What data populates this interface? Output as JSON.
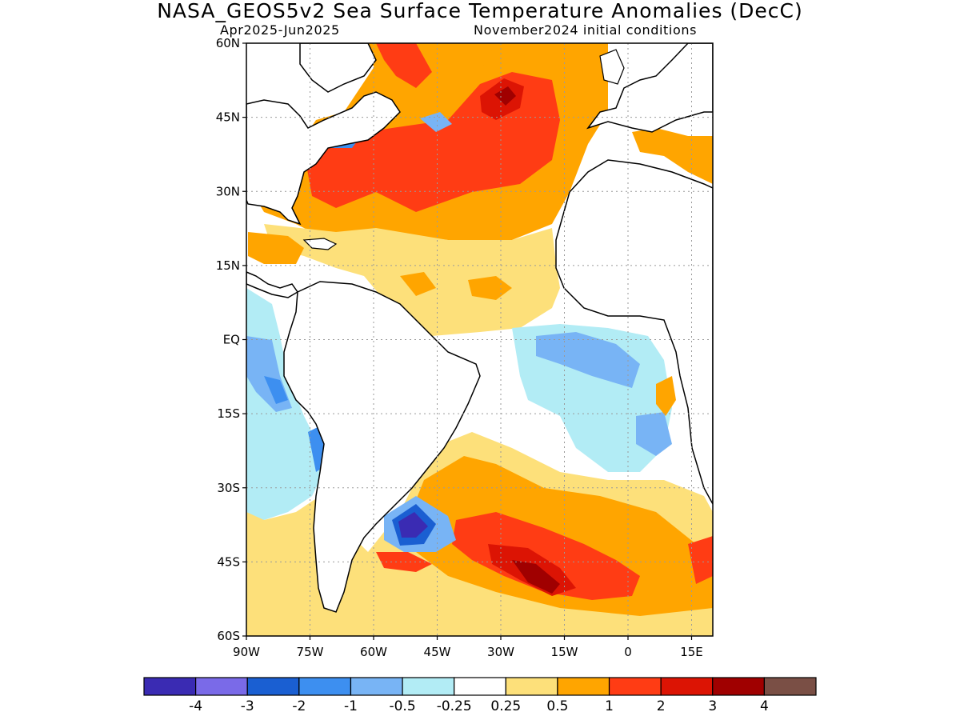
{
  "header": {
    "title": "NASA_GEOS5v2 Sea Surface Temperature Anomalies (DecC)",
    "period": "Apr2025-Jun2025",
    "init": "November2024 initial conditions"
  },
  "map": {
    "lat_labels": [
      "60N",
      "45N",
      "30N",
      "15N",
      "EQ",
      "15S",
      "30S",
      "45S",
      "60S"
    ],
    "lat_values": [
      60,
      45,
      30,
      15,
      0,
      -15,
      -30,
      -45,
      -60
    ],
    "lon_labels": [
      "90W",
      "75W",
      "60W",
      "45W",
      "30W",
      "15W",
      "0",
      "15E"
    ],
    "lon_values": [
      -90,
      -75,
      -60,
      -45,
      -30,
      -15,
      0,
      15
    ],
    "extent": {
      "lon_min": -90,
      "lon_max": 20,
      "lat_min": -60,
      "lat_max": 60
    },
    "grid": true
  },
  "colorbar": {
    "colors": [
      "#3a2bb3",
      "#7a6ae8",
      "#1a5fd2",
      "#3d8ff0",
      "#78b4f5",
      "#b2ecf5",
      "#ffffff",
      "#fde07a",
      "#ffa500",
      "#ff3c14",
      "#dc1404",
      "#a00000",
      "#7a4f45"
    ],
    "labels": [
      "-4",
      "-3",
      "-2",
      "-1",
      "-0.5",
      "-0.25",
      "0.25",
      "0.5",
      "1",
      "2",
      "3",
      "4"
    ]
  }
}
